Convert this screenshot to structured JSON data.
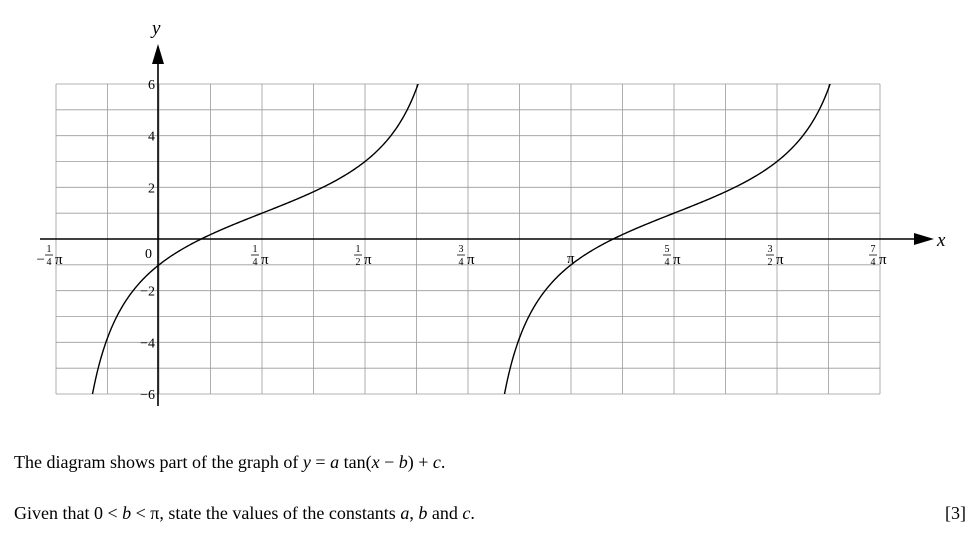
{
  "question": {
    "line1_prefix": "The diagram shows part of the graph of ",
    "line1_equation": "y = a tan(x − b) + c.",
    "line2_text": "Given that 0 < b < π, state the values of the constants a, b and c.",
    "marks": "[3]"
  },
  "chart_data": {
    "type": "line",
    "title": "",
    "xlabel": "x",
    "ylabel": "y",
    "xlim_in_pi": [
      -0.25,
      1.75
    ],
    "ylim": [
      -6,
      6
    ],
    "grid": true,
    "origin_label": "0",
    "x_ticks": [
      {
        "value_in_pi": -0.25,
        "sign": "−",
        "num": "1",
        "den": "4",
        "suffix": "π"
      },
      {
        "value_in_pi": 0.25,
        "sign": "",
        "num": "1",
        "den": "4",
        "suffix": "π"
      },
      {
        "value_in_pi": 0.5,
        "sign": "",
        "num": "1",
        "den": "2",
        "suffix": "π"
      },
      {
        "value_in_pi": 0.75,
        "sign": "",
        "num": "3",
        "den": "4",
        "suffix": "π"
      },
      {
        "value_in_pi": 1.0,
        "sign": "",
        "num": "",
        "den": "",
        "suffix": "π"
      },
      {
        "value_in_pi": 1.25,
        "sign": "",
        "num": "5",
        "den": "4",
        "suffix": "π"
      },
      {
        "value_in_pi": 1.5,
        "sign": "",
        "num": "3",
        "den": "2",
        "suffix": "π"
      },
      {
        "value_in_pi": 1.75,
        "sign": "",
        "num": "7",
        "den": "4",
        "suffix": "π"
      }
    ],
    "y_ticks": [
      {
        "value": 6,
        "label": "6"
      },
      {
        "value": 4,
        "label": "4"
      },
      {
        "value": 2,
        "label": "2"
      },
      {
        "value": -2,
        "label": "−2"
      },
      {
        "value": -4,
        "label": "−4"
      },
      {
        "value": -6,
        "label": "−6"
      }
    ],
    "curve": {
      "a": 2,
      "b_in_pi": 0.25,
      "c": 1
    }
  }
}
